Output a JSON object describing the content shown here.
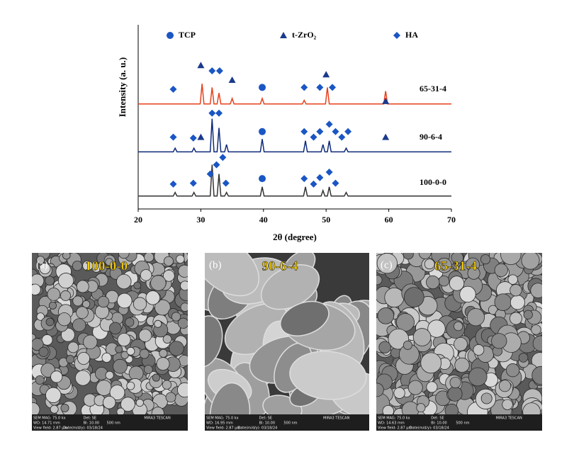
{
  "chart_data": {
    "type": "line",
    "xlabel": "2θ (degree)",
    "ylabel": "Intensity (a. u.)",
    "xlim": [
      20,
      70
    ],
    "xticks": [
      20,
      30,
      40,
      50,
      60,
      70
    ],
    "ylim": [
      0,
      100
    ],
    "series": [
      {
        "name": "65-31-4",
        "color": "#e8401c",
        "x": [
          20,
          29.9,
          30.2,
          30.5,
          31.5,
          31.8,
          32.1,
          32.6,
          32.9,
          33.2,
          34.7,
          35.0,
          35.3,
          39.5,
          39.8,
          40.1,
          46.2,
          46.5,
          46.8,
          49.9,
          50.2,
          50.5,
          59.2,
          59.5,
          59.8,
          70
        ],
        "values": [
          57,
          57,
          68,
          57,
          57,
          66,
          57,
          57,
          63,
          57,
          57,
          60,
          57,
          57,
          60,
          57,
          57,
          59,
          57,
          57,
          66,
          57,
          57,
          64,
          57,
          57
        ]
      },
      {
        "name": "90-6-4",
        "color": "#0f2a7a",
        "x": [
          20,
          25.6,
          25.9,
          26.2,
          28.6,
          28.9,
          29.2,
          31.5,
          31.8,
          32.1,
          32.6,
          32.9,
          33.2,
          33.8,
          34.1,
          34.4,
          39.5,
          39.8,
          40.1,
          46.4,
          46.7,
          47.0,
          49.2,
          49.5,
          49.8,
          50.2,
          50.5,
          50.8,
          52.9,
          53.2,
          53.5,
          70
        ],
        "values": [
          31,
          31,
          33,
          31,
          31,
          33,
          31,
          31,
          49,
          31,
          31,
          44,
          31,
          31,
          35,
          31,
          31,
          38,
          31,
          31,
          37,
          31,
          31,
          35,
          31,
          31,
          37,
          31,
          31,
          33,
          31,
          31
        ]
      },
      {
        "name": "100-0-0",
        "color": "#333333",
        "x": [
          20,
          25.6,
          25.9,
          26.2,
          28.6,
          28.9,
          29.2,
          31.5,
          31.8,
          32.1,
          32.6,
          32.9,
          33.2,
          33.8,
          34.1,
          34.4,
          39.5,
          39.8,
          40.1,
          46.4,
          46.7,
          47.0,
          49.2,
          49.5,
          49.8,
          50.2,
          50.5,
          50.8,
          52.9,
          53.2,
          53.5,
          70
        ],
        "values": [
          7,
          7,
          9,
          7,
          7,
          9,
          7,
          7,
          24,
          7,
          7,
          19,
          7,
          7,
          9,
          7,
          7,
          12,
          7,
          7,
          12,
          7,
          7,
          10,
          7,
          7,
          12,
          7,
          7,
          9,
          7,
          7
        ]
      }
    ],
    "markers": [
      {
        "name": "TCP",
        "shape": "circle",
        "color": "#1a56c4",
        "x": [
          39.8,
          39.8,
          39.8
        ],
        "y": [
          66,
          42,
          16.5
        ]
      },
      {
        "name": "t-ZrO₂",
        "shape": "triangle",
        "color": "#1a3a8c",
        "x": [
          30,
          35,
          50,
          59.5,
          30,
          59.5
        ],
        "y": [
          78,
          70,
          73,
          58.5,
          39,
          39
        ]
      },
      {
        "name": "HA",
        "shape": "diamond",
        "color": "#1a56c4",
        "x": [
          25.6,
          31.8,
          33,
          46.5,
          49,
          51,
          25.6,
          28.8,
          31.8,
          32.9,
          46.5,
          48,
          49,
          50.5,
          51.5,
          52.5,
          53.5,
          25.6,
          28.8,
          31.5,
          32.5,
          33.5,
          34,
          46.5,
          48,
          49,
          50.5,
          51.5
        ],
        "y": [
          65,
          75,
          75,
          66,
          66,
          66,
          39,
          38.5,
          52,
          52,
          42,
          39,
          42,
          46,
          42,
          39,
          42,
          13.5,
          14,
          19,
          24,
          28,
          14,
          16.5,
          13.5,
          17,
          20,
          14
        ]
      }
    ]
  },
  "panels": [
    {
      "letter": "(a)",
      "title": "100-0-0",
      "footer": [
        "SEM MAG: 75.0 kx",
        "Det: SE",
        "MIRA3 TESCAN",
        "WD: 14.71 mm",
        "BI: 10.00",
        "500 nm",
        "View field: 2.87 μm",
        "Date(m/d/y): 03/18/24"
      ]
    },
    {
      "letter": "(b)",
      "title": "90-6-4",
      "footer": [
        "SEM MAG: 75.0 kx",
        "Det: SE",
        "MIRA3 TESCAN",
        "WD: 16.95 mm",
        "BI: 10.00",
        "500 nm",
        "View field: 2.87 μm",
        "Date(m/d/y): 03/18/24"
      ]
    },
    {
      "letter": "(c)",
      "title": "65-31-4",
      "footer": [
        "SEM MAG: 75.0 kx",
        "Det: SE",
        "MIRA3 TESCAN",
        "WD: 14.63 mm",
        "BI: 10.00",
        "500 nm",
        "View field: 2.87 μm",
        "Date(m/d/y): 03/18/24"
      ]
    }
  ]
}
